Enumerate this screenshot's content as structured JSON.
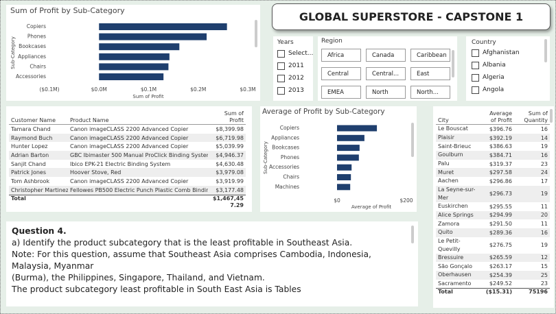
{
  "chart_data": [
    {
      "type": "bar",
      "orientation": "horizontal",
      "title": "Sum of Profit by Sub-Category",
      "x_label": "Sum of Profit",
      "y_label": "Sub-Category",
      "categories": [
        "Copiers",
        "Phones",
        "Bookcases",
        "Appliances",
        "Chairs",
        "Accessories"
      ],
      "values": [
        258000,
        217000,
        162000,
        142000,
        140000,
        130000
      ],
      "color": "#1f3f6e",
      "xlim": [
        -100000,
        300000
      ],
      "xticks": [
        {
          "value": -100000,
          "label": "($0.1M)"
        },
        {
          "value": 0,
          "label": "$0.0M"
        },
        {
          "value": 100000,
          "label": "$0.1M"
        },
        {
          "value": 200000,
          "label": "$0.2M"
        },
        {
          "value": 300000,
          "label": "$0.3M"
        }
      ]
    },
    {
      "type": "bar",
      "orientation": "horizontal",
      "title": "Average of Profit by Sub-Category",
      "x_label": "Average of Profit",
      "y_label": "Sub-Category",
      "categories": [
        "Copiers",
        "Appliances",
        "Bookcases",
        "Phones",
        "Accessories",
        "Chairs",
        "Machines"
      ],
      "values": [
        115,
        79,
        65,
        63,
        42,
        40,
        38
      ],
      "color": "#1f3f6e",
      "xlim": [
        0,
        200
      ],
      "xticks": [
        {
          "value": 0,
          "label": "$0"
        },
        {
          "value": 200,
          "label": "$200"
        }
      ]
    }
  ],
  "header": {
    "title": "GLOBAL SUPERSTORE - CAPSTONE 1"
  },
  "slicers": {
    "years": {
      "title": "Years",
      "items": [
        "Select...",
        "2011",
        "2012",
        "2013"
      ]
    },
    "region": {
      "title": "Region",
      "items": [
        "Africa",
        "Canada",
        "Caribbean",
        "Central",
        "Central...",
        "East",
        "EMEA",
        "North",
        "North..."
      ]
    },
    "country": {
      "title": "Country",
      "items": [
        "Afghanistan",
        "Albania",
        "Algeria",
        "Angola"
      ]
    }
  },
  "customer_table": {
    "columns": [
      "Customer Name",
      "Product Name",
      "Sum of Profit"
    ],
    "rows": [
      [
        "Tamara Chand",
        "Canon imageCLASS 2200 Advanced Copier",
        "$8,399.98"
      ],
      [
        "Raymond Buch",
        "Canon imageCLASS 2200 Advanced Copier",
        "$6,719.98"
      ],
      [
        "Hunter Lopez",
        "Canon imageCLASS 2200 Advanced Copier",
        "$5,039.99"
      ],
      [
        "Adrian Barton",
        "GBC Ibimaster 500 Manual ProClick Binding System",
        "$4,946.37"
      ],
      [
        "Sanjit Chand",
        "Ibico EPK-21 Electric Binding System",
        "$4,630.48"
      ],
      [
        "Patrick Jones",
        "Hoover Stove, Red",
        "$3,979.08"
      ],
      [
        "Tom Ashbrook",
        "Canon imageCLASS 2200 Advanced Copier",
        "$3,919.99"
      ],
      [
        "Christopher Martinez",
        "Fellowes PB500 Electric Punch Plastic Comb Binding",
        "$3,177.48"
      ]
    ],
    "total": [
      "Total",
      "$1,467,45",
      "7.29"
    ]
  },
  "city_table": {
    "columns": [
      "City",
      "Average of Profit",
      "Sum of Quantity"
    ],
    "rows": [
      [
        "Le Bouscat",
        "$396.76",
        "16"
      ],
      [
        "Plaisir",
        "$392.19",
        "14"
      ],
      [
        "Saint-Brieuc",
        "$386.63",
        "19"
      ],
      [
        "Goulburn",
        "$384.71",
        "16"
      ],
      [
        "Palu",
        "$319.37",
        "23"
      ],
      [
        "Muret",
        "$297.58",
        "24"
      ],
      [
        "Aachen",
        "$296.86",
        "17"
      ],
      [
        "La Seyne-sur-Mer",
        "$296.73",
        "19"
      ],
      [
        "Euskirchen",
        "$295.55",
        "11"
      ],
      [
        "Alice Springs",
        "$294.99",
        "20"
      ],
      [
        "Zamora",
        "$291.50",
        "11"
      ],
      [
        "Quito",
        "$289.36",
        "16"
      ],
      [
        "Le Petit-Quevilly",
        "$276.75",
        "19"
      ],
      [
        "Bressuire",
        "$265.59",
        "12"
      ],
      [
        "São Gonçalo",
        "$263.17",
        "15"
      ],
      [
        "Oberhausen",
        "$254.39",
        "25"
      ],
      [
        "Sacramento",
        "$249.52",
        "23"
      ]
    ],
    "total": [
      "Total",
      "($15.31)",
      "75196"
    ]
  },
  "question": {
    "heading": "Question 4.",
    "lines": [
      "a) Identify the product subcategory that is the least profitable in Southeast Asia.",
      "Note: For this question, assume that Southeast Asia comprises Cambodia, Indonesia, Malaysia, Myanmar",
      "(Burma), the Philippines, Singapore, Thailand, and Vietnam.",
      "The product subcategory least profitable in South East Asia is Tables"
    ]
  }
}
